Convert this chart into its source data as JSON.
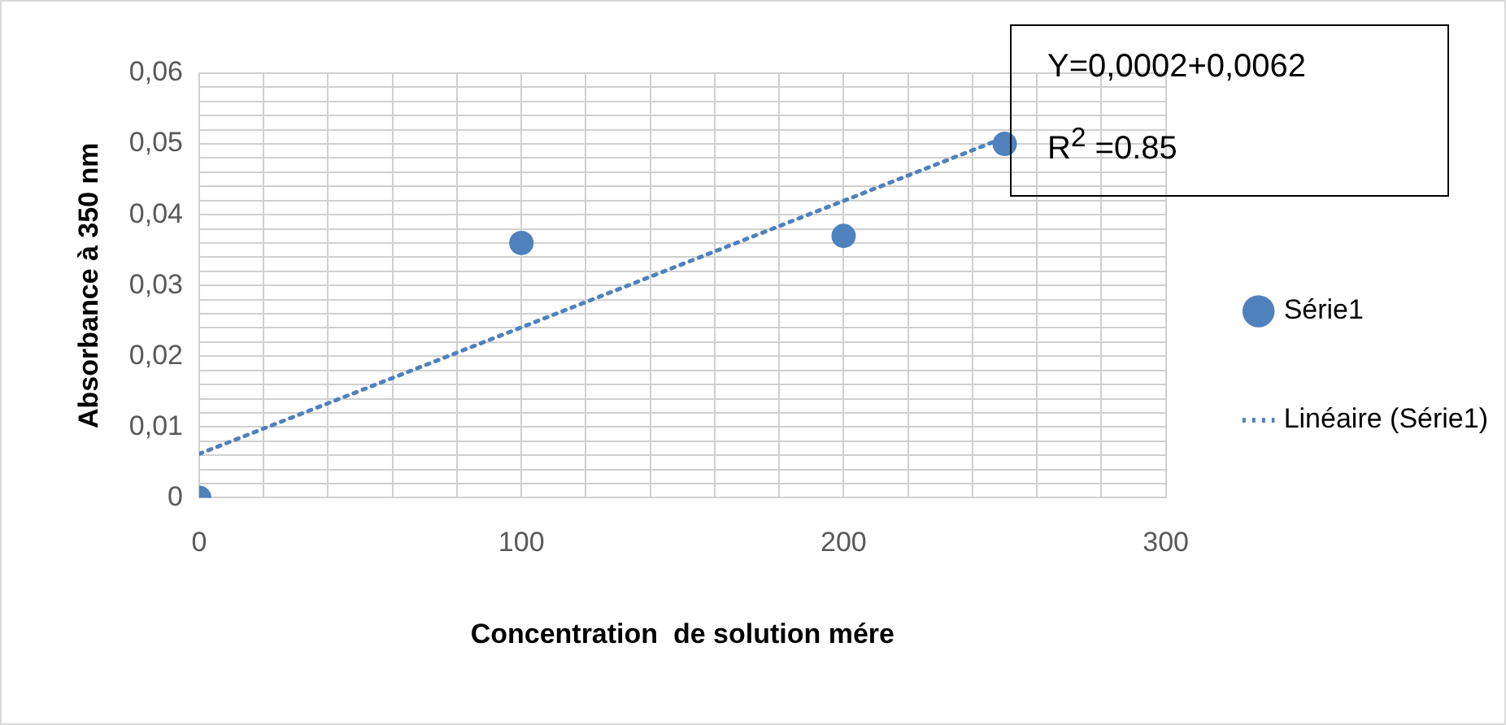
{
  "chart_data": {
    "type": "scatter",
    "xlabel": "Concentration  de solution mére",
    "ylabel": "Absorbance à 350 nm",
    "annotations": [
      "Y=0,0002+0,0062",
      "R$^{2}$ =0.85"
    ],
    "series": [
      {
        "name": "Série1",
        "color": "#4f81bd",
        "marker": "circle",
        "x": [
          0,
          100,
          200,
          250
        ],
        "values": [
          0,
          0.036,
          0.037,
          0.05
        ]
      },
      {
        "name": "Linéaire (Série1)",
        "type": "line",
        "color": "#4f81bd",
        "marker": "none",
        "line_style": "dotted",
        "x": [
          0,
          250
        ],
        "values": [
          0.0062,
          0.0509
        ]
      }
    ],
    "xlim": [
      0,
      300
    ],
    "xticks": [
      0,
      {
        "value": 20,
        "label": null
      },
      {
        "value": 40,
        "label": null
      },
      {
        "value": 60,
        "label": null
      },
      {
        "value": 80,
        "label": null
      },
      100,
      {
        "value": 120,
        "label": null
      },
      {
        "value": 140,
        "label": null
      },
      {
        "value": 160,
        "label": null
      },
      {
        "value": 180,
        "label": null
      },
      200,
      {
        "value": 220,
        "label": null
      },
      {
        "value": 240,
        "label": null
      },
      {
        "value": 260,
        "label": null
      },
      {
        "value": 280,
        "label": null
      },
      300
    ],
    "ylim": [
      0,
      0.06
    ],
    "yticks": [
      0,
      {
        "value": 0.002,
        "label": null
      },
      {
        "value": 0.004,
        "label": null
      },
      {
        "value": 0.006,
        "label": null
      },
      {
        "value": 0.008,
        "label": null
      },
      {
        "value": 0.01,
        "label": "0,01"
      },
      {
        "value": 0.012,
        "label": null
      },
      {
        "value": 0.014,
        "label": null
      },
      {
        "value": 0.016,
        "label": null
      },
      {
        "value": 0.018,
        "label": null
      },
      {
        "value": 0.02,
        "label": "0,02"
      },
      {
        "value": 0.022,
        "label": null
      },
      {
        "value": 0.024,
        "label": null
      },
      {
        "value": 0.026,
        "label": null
      },
      {
        "value": 0.028,
        "label": null
      },
      {
        "value": 0.03,
        "label": "0,03"
      },
      {
        "value": 0.032,
        "label": null
      },
      {
        "value": 0.034,
        "label": null
      },
      {
        "value": 0.036,
        "label": null
      },
      {
        "value": 0.038,
        "label": null
      },
      {
        "value": 0.04,
        "label": "0,04"
      },
      {
        "value": 0.042,
        "label": null
      },
      {
        "value": 0.044,
        "label": null
      },
      {
        "value": 0.046,
        "label": null
      },
      {
        "value": 0.048,
        "label": null
      },
      {
        "value": 0.05,
        "label": "0,05"
      },
      {
        "value": 0.052,
        "label": null
      },
      {
        "value": 0.054,
        "label": null
      },
      {
        "value": 0.056,
        "label": null
      },
      {
        "value": 0.058,
        "label": null
      },
      {
        "value": 0.06,
        "label": "0,06"
      }
    ],
    "grid": true,
    "legend": "right"
  }
}
